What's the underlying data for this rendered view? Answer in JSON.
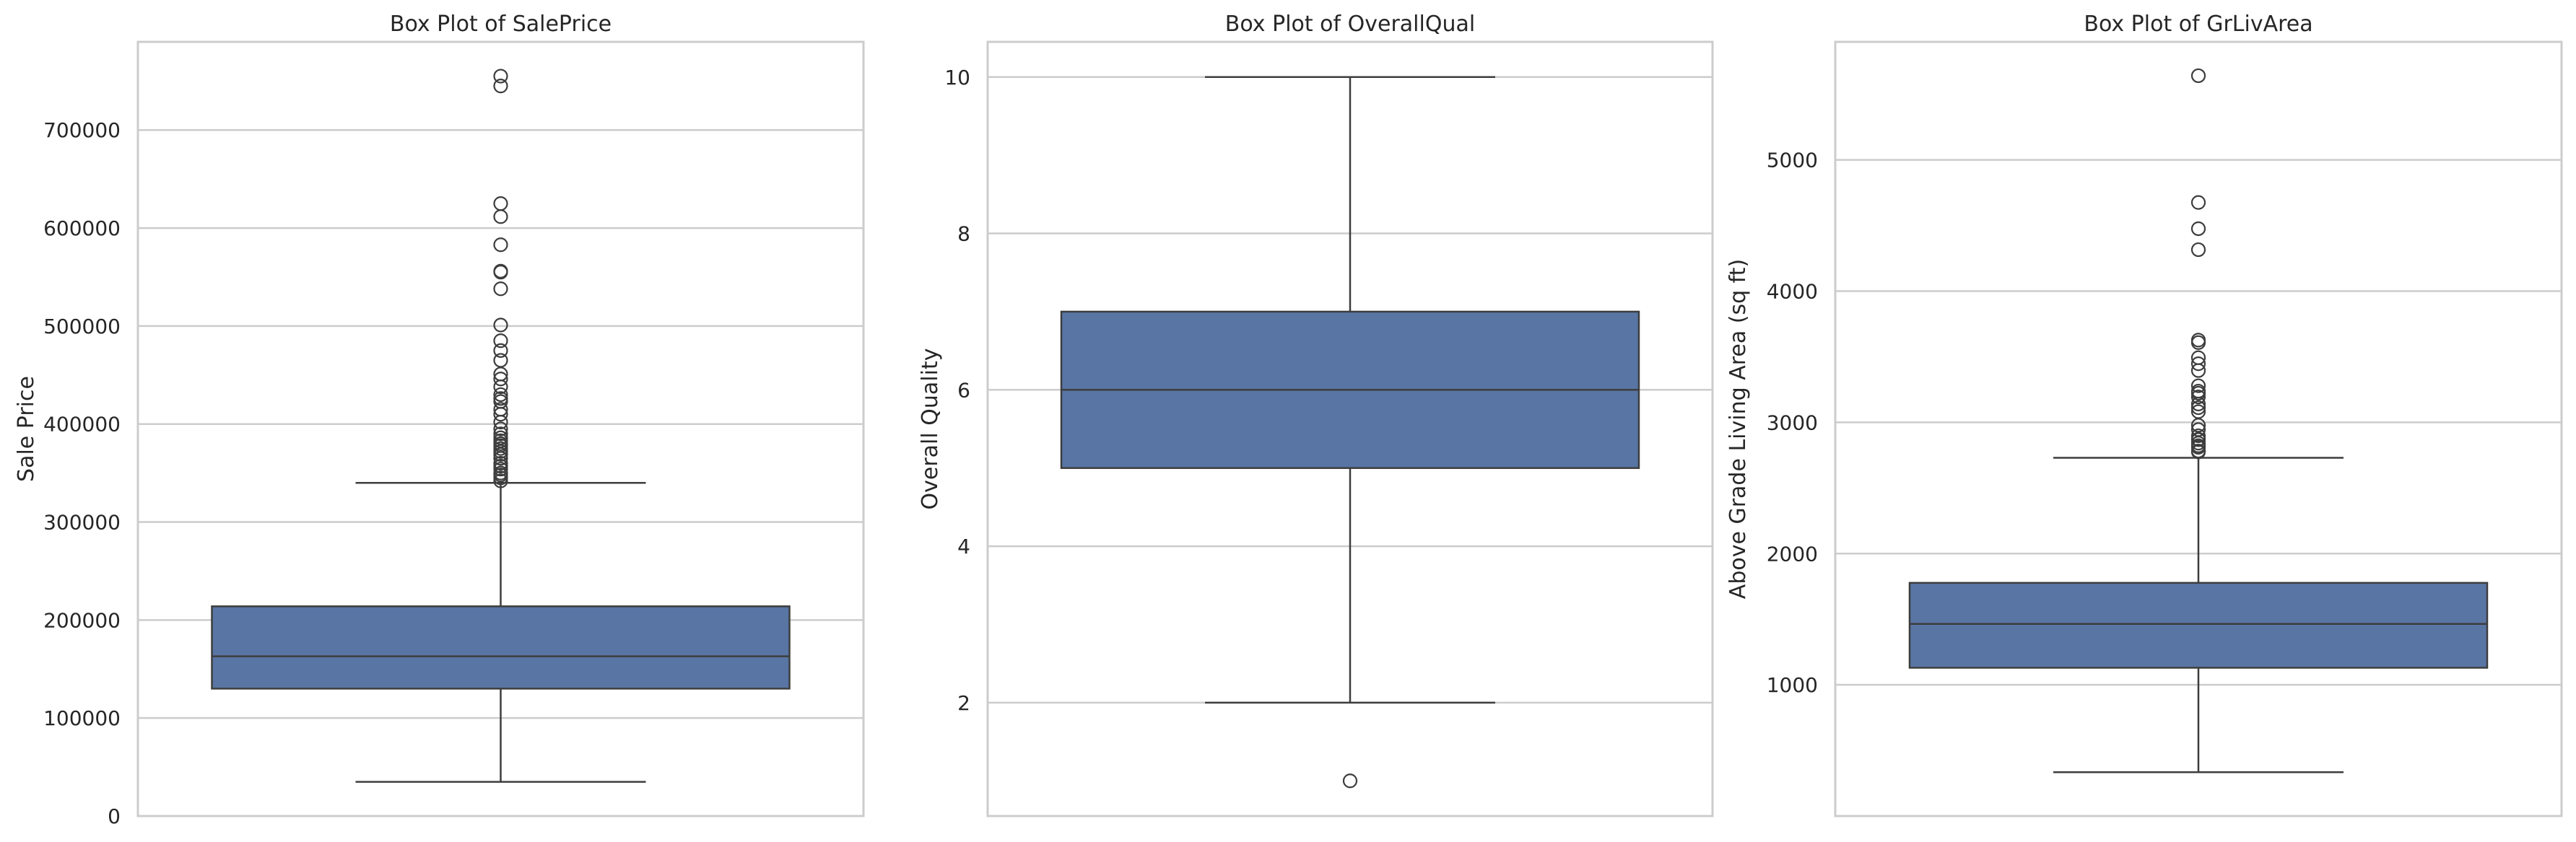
{
  "chart_data": [
    {
      "type": "box",
      "title": "Box Plot of SalePrice",
      "ylabel": "Sale Price",
      "ylim": [
        0,
        790000
      ],
      "yticks": [
        0,
        100000,
        200000,
        300000,
        400000,
        500000,
        600000,
        700000
      ],
      "grid": true,
      "box": {
        "min": 34900,
        "q1": 130000,
        "median": 163000,
        "q3": 214000,
        "max": 340000
      },
      "outliers": [
        342000,
        345000,
        348000,
        350000,
        354000,
        357000,
        360000,
        365000,
        369000,
        372000,
        375000,
        378000,
        380000,
        383000,
        386000,
        390000,
        395000,
        402000,
        410000,
        415000,
        423000,
        426000,
        430000,
        438000,
        446000,
        451000,
        465000,
        475000,
        485000,
        501000,
        538000,
        556000,
        555000,
        582933,
        611657,
        625000,
        745000,
        755000
      ],
      "color": "#5875a4"
    },
    {
      "type": "box",
      "title": "Box Plot of OverallQual",
      "ylabel": "Overall Quality",
      "ylim": [
        0.55,
        10.45
      ],
      "yticks": [
        2,
        4,
        6,
        8,
        10
      ],
      "grid": true,
      "box": {
        "min": 2,
        "q1": 5,
        "median": 6,
        "q3": 7,
        "max": 10
      },
      "outliers": [
        1
      ],
      "color": "#5875a4"
    },
    {
      "type": "box",
      "title": "Box Plot of GrLivArea",
      "ylabel": "Above Grade Living Area (sq ft)",
      "ylim": [
        0,
        5900
      ],
      "yticks": [
        1000,
        2000,
        3000,
        4000,
        5000
      ],
      "grid": true,
      "box": {
        "min": 334,
        "q1": 1130,
        "median": 1464,
        "q3": 1777,
        "max": 2730
      },
      "outliers": [
        2775,
        2782,
        2810,
        2822,
        2842,
        2868,
        2872,
        2898,
        2945,
        2978,
        3082,
        3112,
        3140,
        3194,
        3222,
        3238,
        3279,
        3395,
        3447,
        3493,
        3608,
        3627,
        4316,
        4476,
        4676,
        5642
      ],
      "color": "#5875a4"
    }
  ]
}
